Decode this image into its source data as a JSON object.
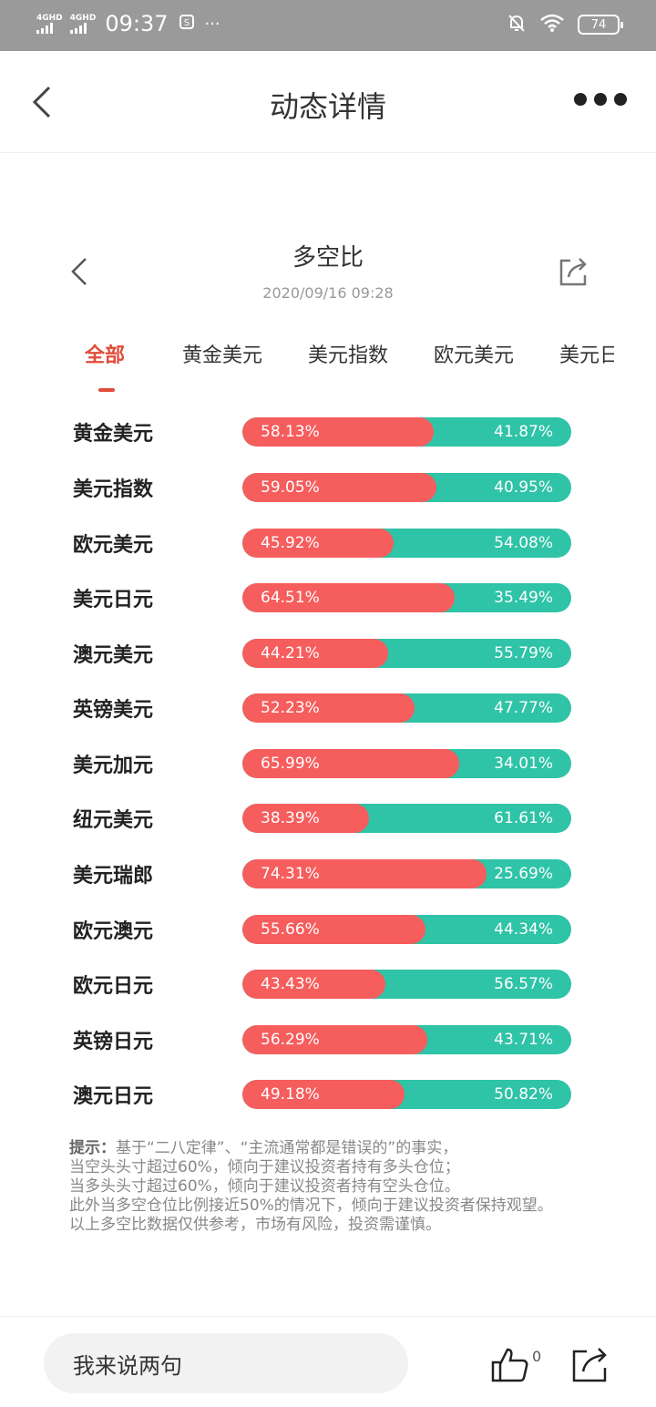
{
  "status_bar": {
    "signal_label": "4GHD",
    "time": "09:37",
    "battery": "74"
  },
  "nav": {
    "title": "动态详情"
  },
  "card": {
    "title": "多空比",
    "date": "2020/09/16 09:28"
  },
  "tabs": [
    {
      "label": "全部",
      "active": true
    },
    {
      "label": "黄金美元",
      "active": false
    },
    {
      "label": "美元指数",
      "active": false
    },
    {
      "label": "欧元美元",
      "active": false
    },
    {
      "label": "美元日元",
      "active": false
    }
  ],
  "rows": [
    {
      "name": "黄金美元",
      "long": "58.13%",
      "short": "41.87%",
      "long_value": 58.13
    },
    {
      "name": "美元指数",
      "long": "59.05%",
      "short": "40.95%",
      "long_value": 59.05
    },
    {
      "name": "欧元美元",
      "long": "45.92%",
      "short": "54.08%",
      "long_value": 45.92
    },
    {
      "name": "美元日元",
      "long": "64.51%",
      "short": "35.49%",
      "long_value": 64.51
    },
    {
      "name": "澳元美元",
      "long": "44.21%",
      "short": "55.79%",
      "long_value": 44.21
    },
    {
      "name": "英镑美元",
      "long": "52.23%",
      "short": "47.77%",
      "long_value": 52.23
    },
    {
      "name": "美元加元",
      "long": "65.99%",
      "short": "34.01%",
      "long_value": 65.99
    },
    {
      "name": "纽元美元",
      "long": "38.39%",
      "short": "61.61%",
      "long_value": 38.39
    },
    {
      "name": "美元瑞郎",
      "long": "74.31%",
      "short": "25.69%",
      "long_value": 74.31
    },
    {
      "name": "欧元澳元",
      "long": "55.66%",
      "short": "44.34%",
      "long_value": 55.66
    },
    {
      "name": "欧元日元",
      "long": "43.43%",
      "short": "56.57%",
      "long_value": 43.43
    },
    {
      "name": "英镑日元",
      "long": "56.29%",
      "short": "43.71%",
      "long_value": 56.29
    },
    {
      "name": "澳元日元",
      "long": "49.18%",
      "short": "50.82%",
      "long_value": 49.18
    }
  ],
  "colors": {
    "long": "#f65d5d",
    "short": "#2fc3a7",
    "accent": "#e24a3a"
  },
  "tip": {
    "label": "提示：",
    "line1": "基于“二八定律”、“主流通常都是错误的”的事实，",
    "line2": "当空头头寸超过60%，倾向于建议投资者持有多头仓位；",
    "line3": "当多头头寸超过60%，倾向于建议投资者持有空头仓位。",
    "line4": "此外当多空仓位比例接近50%的情况下，倾向于建议投资者保持观望。",
    "line5": "以上多空比数据仅供参考，市场有风险，投资需谨慎。"
  },
  "bottom": {
    "comment_placeholder": "我来说两句",
    "like_count": "0"
  }
}
